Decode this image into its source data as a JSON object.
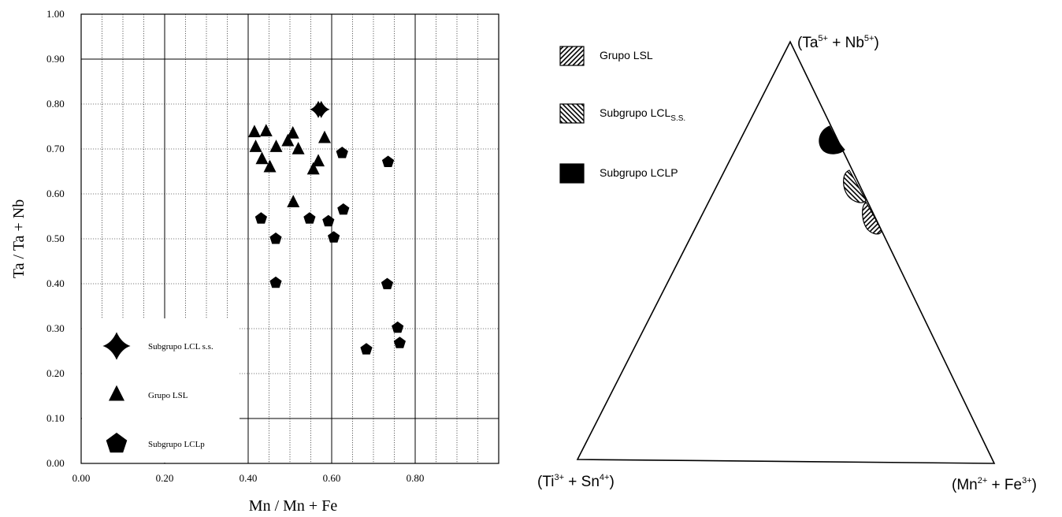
{
  "chart_data": [
    {
      "type": "scatter",
      "title": "",
      "xlabel": "Mn / Mn + Fe",
      "ylabel": "Ta / Ta + Nb",
      "xlim": [
        0,
        1
      ],
      "ylim": [
        0,
        1
      ],
      "x_ticks": [
        "0.00",
        "0.20",
        "0.40",
        "0.60",
        "0.80"
      ],
      "y_ticks": [
        "0.00",
        "0.10",
        "0.20",
        "0.30",
        "0.40",
        "0.50",
        "0.60",
        "0.70",
        "0.80",
        "0.90",
        "1.00"
      ],
      "grid": true,
      "legend_position": "bottom-left",
      "series": [
        {
          "name": "Subgrupo LCL s.s.",
          "marker": "cross",
          "points": [
            [
              0.568,
              0.788
            ],
            [
              0.575,
              0.788
            ]
          ]
        },
        {
          "name": "Grupo LSL",
          "marker": "triangle",
          "points": [
            [
              0.415,
              0.738
            ],
            [
              0.443,
              0.74
            ],
            [
              0.418,
              0.705
            ],
            [
              0.433,
              0.678
            ],
            [
              0.452,
              0.66
            ],
            [
              0.467,
              0.705
            ],
            [
              0.495,
              0.718
            ],
            [
              0.507,
              0.735
            ],
            [
              0.52,
              0.7
            ],
            [
              0.583,
              0.725
            ],
            [
              0.568,
              0.673
            ],
            [
              0.556,
              0.655
            ],
            [
              0.508,
              0.582
            ]
          ]
        },
        {
          "name": "Subgrupo LCLp",
          "marker": "pentagon",
          "points": [
            [
              0.431,
              0.545
            ],
            [
              0.466,
              0.5
            ],
            [
              0.466,
              0.402
            ],
            [
              0.547,
              0.545
            ],
            [
              0.592,
              0.539
            ],
            [
              0.605,
              0.503
            ],
            [
              0.628,
              0.565
            ],
            [
              0.625,
              0.691
            ],
            [
              0.735,
              0.671
            ],
            [
              0.733,
              0.399
            ],
            [
              0.758,
              0.302
            ],
            [
              0.763,
              0.268
            ],
            [
              0.683,
              0.254
            ]
          ]
        }
      ]
    },
    {
      "type": "ternary",
      "title": "",
      "vertex_labels": {
        "top": [
          "(Ta",
          "5+",
          " + Nb",
          "5+",
          ")"
        ],
        "left": [
          "(Ti",
          "3+",
          " + Sn",
          "4+",
          ")"
        ],
        "right": [
          "(Mn",
          "2+",
          " + Fe",
          "3+",
          ")"
        ]
      },
      "legend_position": "top-left",
      "legend": [
        {
          "name": "Grupo LSL",
          "pattern": "hatch-diagonal"
        },
        {
          "name": "Subgrupo LCL",
          "subscript": "S.S.",
          "pattern": "hatch-backdiagonal"
        },
        {
          "name": "Subgrupo LCLP",
          "pattern": "solid"
        }
      ],
      "fields": [
        {
          "group": "Subgrupo LCLP",
          "pattern": "solid",
          "top_fraction_range": [
            0.7,
            0.8
          ]
        },
        {
          "group": "Subgrupo LCL",
          "pattern": "hatch-backdiagonal",
          "top_fraction_range": [
            0.55,
            0.65
          ]
        },
        {
          "group": "Grupo LSL",
          "pattern": "hatch-diagonal",
          "top_fraction_range": [
            0.48,
            0.58
          ]
        }
      ]
    }
  ]
}
